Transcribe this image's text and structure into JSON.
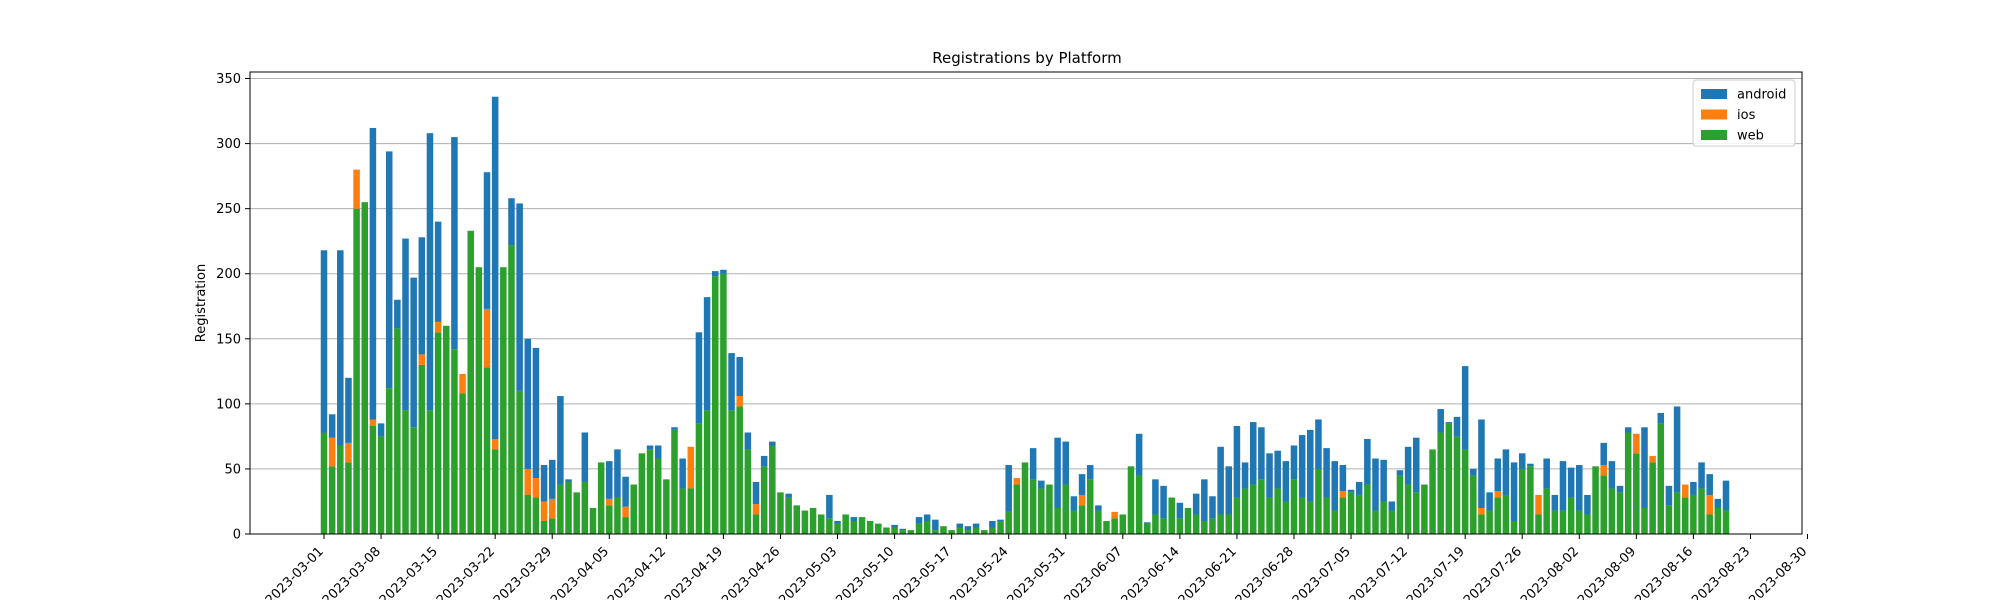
{
  "chart_data": {
    "type": "bar",
    "stacked": true,
    "title": "Registrations by Platform",
    "xlabel": "",
    "ylabel": "Registration",
    "ylim": [
      0,
      355
    ],
    "yticks": [
      0,
      50,
      100,
      150,
      200,
      250,
      300,
      350
    ],
    "grid": "y",
    "legend_position": "top-right",
    "start_date": "2023-03-01",
    "xtick_labels": [
      "2023-03-01",
      "2023-03-08",
      "2023-03-15",
      "2023-03-22",
      "2023-03-29",
      "2023-04-05",
      "2023-04-12",
      "2023-04-19",
      "2023-04-26",
      "2023-05-03",
      "2023-05-10",
      "2023-05-17",
      "2023-05-24",
      "2023-05-31",
      "2023-06-07",
      "2023-06-14",
      "2023-06-21",
      "2023-06-28",
      "2023-07-05",
      "2023-07-12",
      "2023-07-19",
      "2023-07-26",
      "2023-08-02",
      "2023-08-09",
      "2023-08-16",
      "2023-08-23",
      "2023-08-30"
    ],
    "series": [
      {
        "name": "web",
        "color": "#2ca02c",
        "values": [
          78,
          52,
          68,
          55,
          250,
          255,
          83,
          75,
          112,
          158,
          95,
          82,
          130,
          95,
          155,
          160,
          142,
          108,
          233,
          205,
          128,
          65,
          205,
          222,
          110,
          30,
          28,
          10,
          12,
          38,
          40,
          32,
          40,
          20,
          55,
          22,
          28,
          13,
          38,
          62,
          65,
          58,
          42,
          80,
          35,
          35,
          85,
          95,
          198,
          200,
          95,
          98,
          65,
          15,
          52,
          68,
          32,
          28,
          22,
          18,
          20,
          15,
          12,
          8,
          15,
          10,
          13,
          10,
          8,
          5,
          5,
          3,
          3,
          8,
          10,
          3,
          6,
          3,
          5,
          3,
          5,
          3,
          5,
          10,
          17,
          38,
          55,
          42,
          35,
          38,
          20,
          38,
          18,
          22,
          42,
          18,
          10,
          12,
          15,
          52,
          45,
          8,
          15,
          12,
          28,
          12,
          20,
          15,
          10,
          12,
          15,
          15,
          28,
          35,
          38,
          42,
          28,
          35,
          25,
          42,
          28,
          25,
          50,
          28,
          18,
          28,
          32,
          30,
          38,
          18,
          25,
          18,
          45,
          38,
          32,
          38,
          65,
          78,
          85,
          75,
          65,
          45,
          15,
          18,
          28,
          30,
          10,
          50,
          52,
          15,
          35,
          18,
          18,
          28,
          18,
          15,
          52,
          45,
          35,
          32,
          78,
          62,
          20,
          55,
          85,
          22,
          32,
          28,
          30,
          35,
          15,
          20,
          18
        ]
      },
      {
        "name": "ios",
        "color": "#ff7f0e",
        "values": [
          0,
          22,
          0,
          15,
          30,
          0,
          5,
          0,
          0,
          0,
          0,
          0,
          8,
          0,
          8,
          0,
          0,
          15,
          0,
          0,
          45,
          8,
          0,
          0,
          0,
          20,
          15,
          15,
          15,
          0,
          0,
          0,
          0,
          0,
          0,
          5,
          0,
          8,
          0,
          0,
          0,
          0,
          0,
          0,
          0,
          32,
          0,
          0,
          0,
          0,
          0,
          8,
          0,
          8,
          0,
          0,
          0,
          0,
          0,
          0,
          0,
          0,
          0,
          0,
          0,
          0,
          0,
          0,
          0,
          0,
          0,
          0,
          0,
          0,
          0,
          0,
          0,
          0,
          0,
          0,
          0,
          0,
          0,
          0,
          0,
          5,
          0,
          0,
          0,
          0,
          0,
          0,
          0,
          8,
          0,
          0,
          0,
          5,
          0,
          0,
          0,
          0,
          0,
          0,
          0,
          0,
          0,
          0,
          0,
          0,
          0,
          0,
          0,
          0,
          0,
          0,
          0,
          0,
          0,
          0,
          0,
          0,
          0,
          0,
          0,
          5,
          0,
          0,
          0,
          0,
          0,
          0,
          0,
          0,
          0,
          0,
          0,
          0,
          0,
          0,
          0,
          0,
          5,
          0,
          5,
          0,
          0,
          0,
          0,
          15,
          0,
          0,
          0,
          0,
          0,
          0,
          0,
          8,
          0,
          0,
          0,
          15,
          0,
          5,
          0,
          0,
          0,
          10,
          0,
          0,
          15,
          0,
          0
        ]
      },
      {
        "name": "android",
        "color": "#1f77b4",
        "values": [
          140,
          18,
          150,
          50,
          0,
          0,
          224,
          10,
          182,
          22,
          132,
          115,
          90,
          213,
          77,
          0,
          163,
          0,
          0,
          0,
          105,
          263,
          0,
          36,
          144,
          100,
          100,
          28,
          30,
          68,
          2,
          0,
          38,
          0,
          0,
          29,
          37,
          23,
          0,
          0,
          3,
          10,
          0,
          2,
          23,
          0,
          70,
          87,
          4,
          3,
          44,
          30,
          13,
          17,
          8,
          3,
          0,
          3,
          0,
          0,
          0,
          0,
          18,
          2,
          0,
          3,
          0,
          0,
          0,
          0,
          2,
          1,
          0,
          5,
          5,
          8,
          0,
          0,
          3,
          3,
          3,
          0,
          5,
          1,
          36,
          0,
          0,
          24,
          6,
          0,
          54,
          33,
          11,
          16,
          11,
          4,
          0,
          0,
          0,
          0,
          32,
          1,
          27,
          25,
          0,
          12,
          0,
          16,
          32,
          17,
          52,
          37,
          55,
          20,
          48,
          40,
          34,
          29,
          31,
          26,
          48,
          55,
          38,
          38,
          38,
          20,
          2,
          10,
          35,
          40,
          32,
          7,
          4,
          29,
          42,
          0,
          0,
          18,
          1,
          15,
          64,
          5,
          68,
          14,
          25,
          35,
          45,
          12,
          2,
          0,
          23,
          12,
          38,
          23,
          35,
          15,
          0,
          17,
          21,
          5,
          4,
          0,
          62,
          0,
          8,
          15,
          66,
          0,
          10,
          20,
          16,
          7,
          23
        ]
      }
    ]
  }
}
